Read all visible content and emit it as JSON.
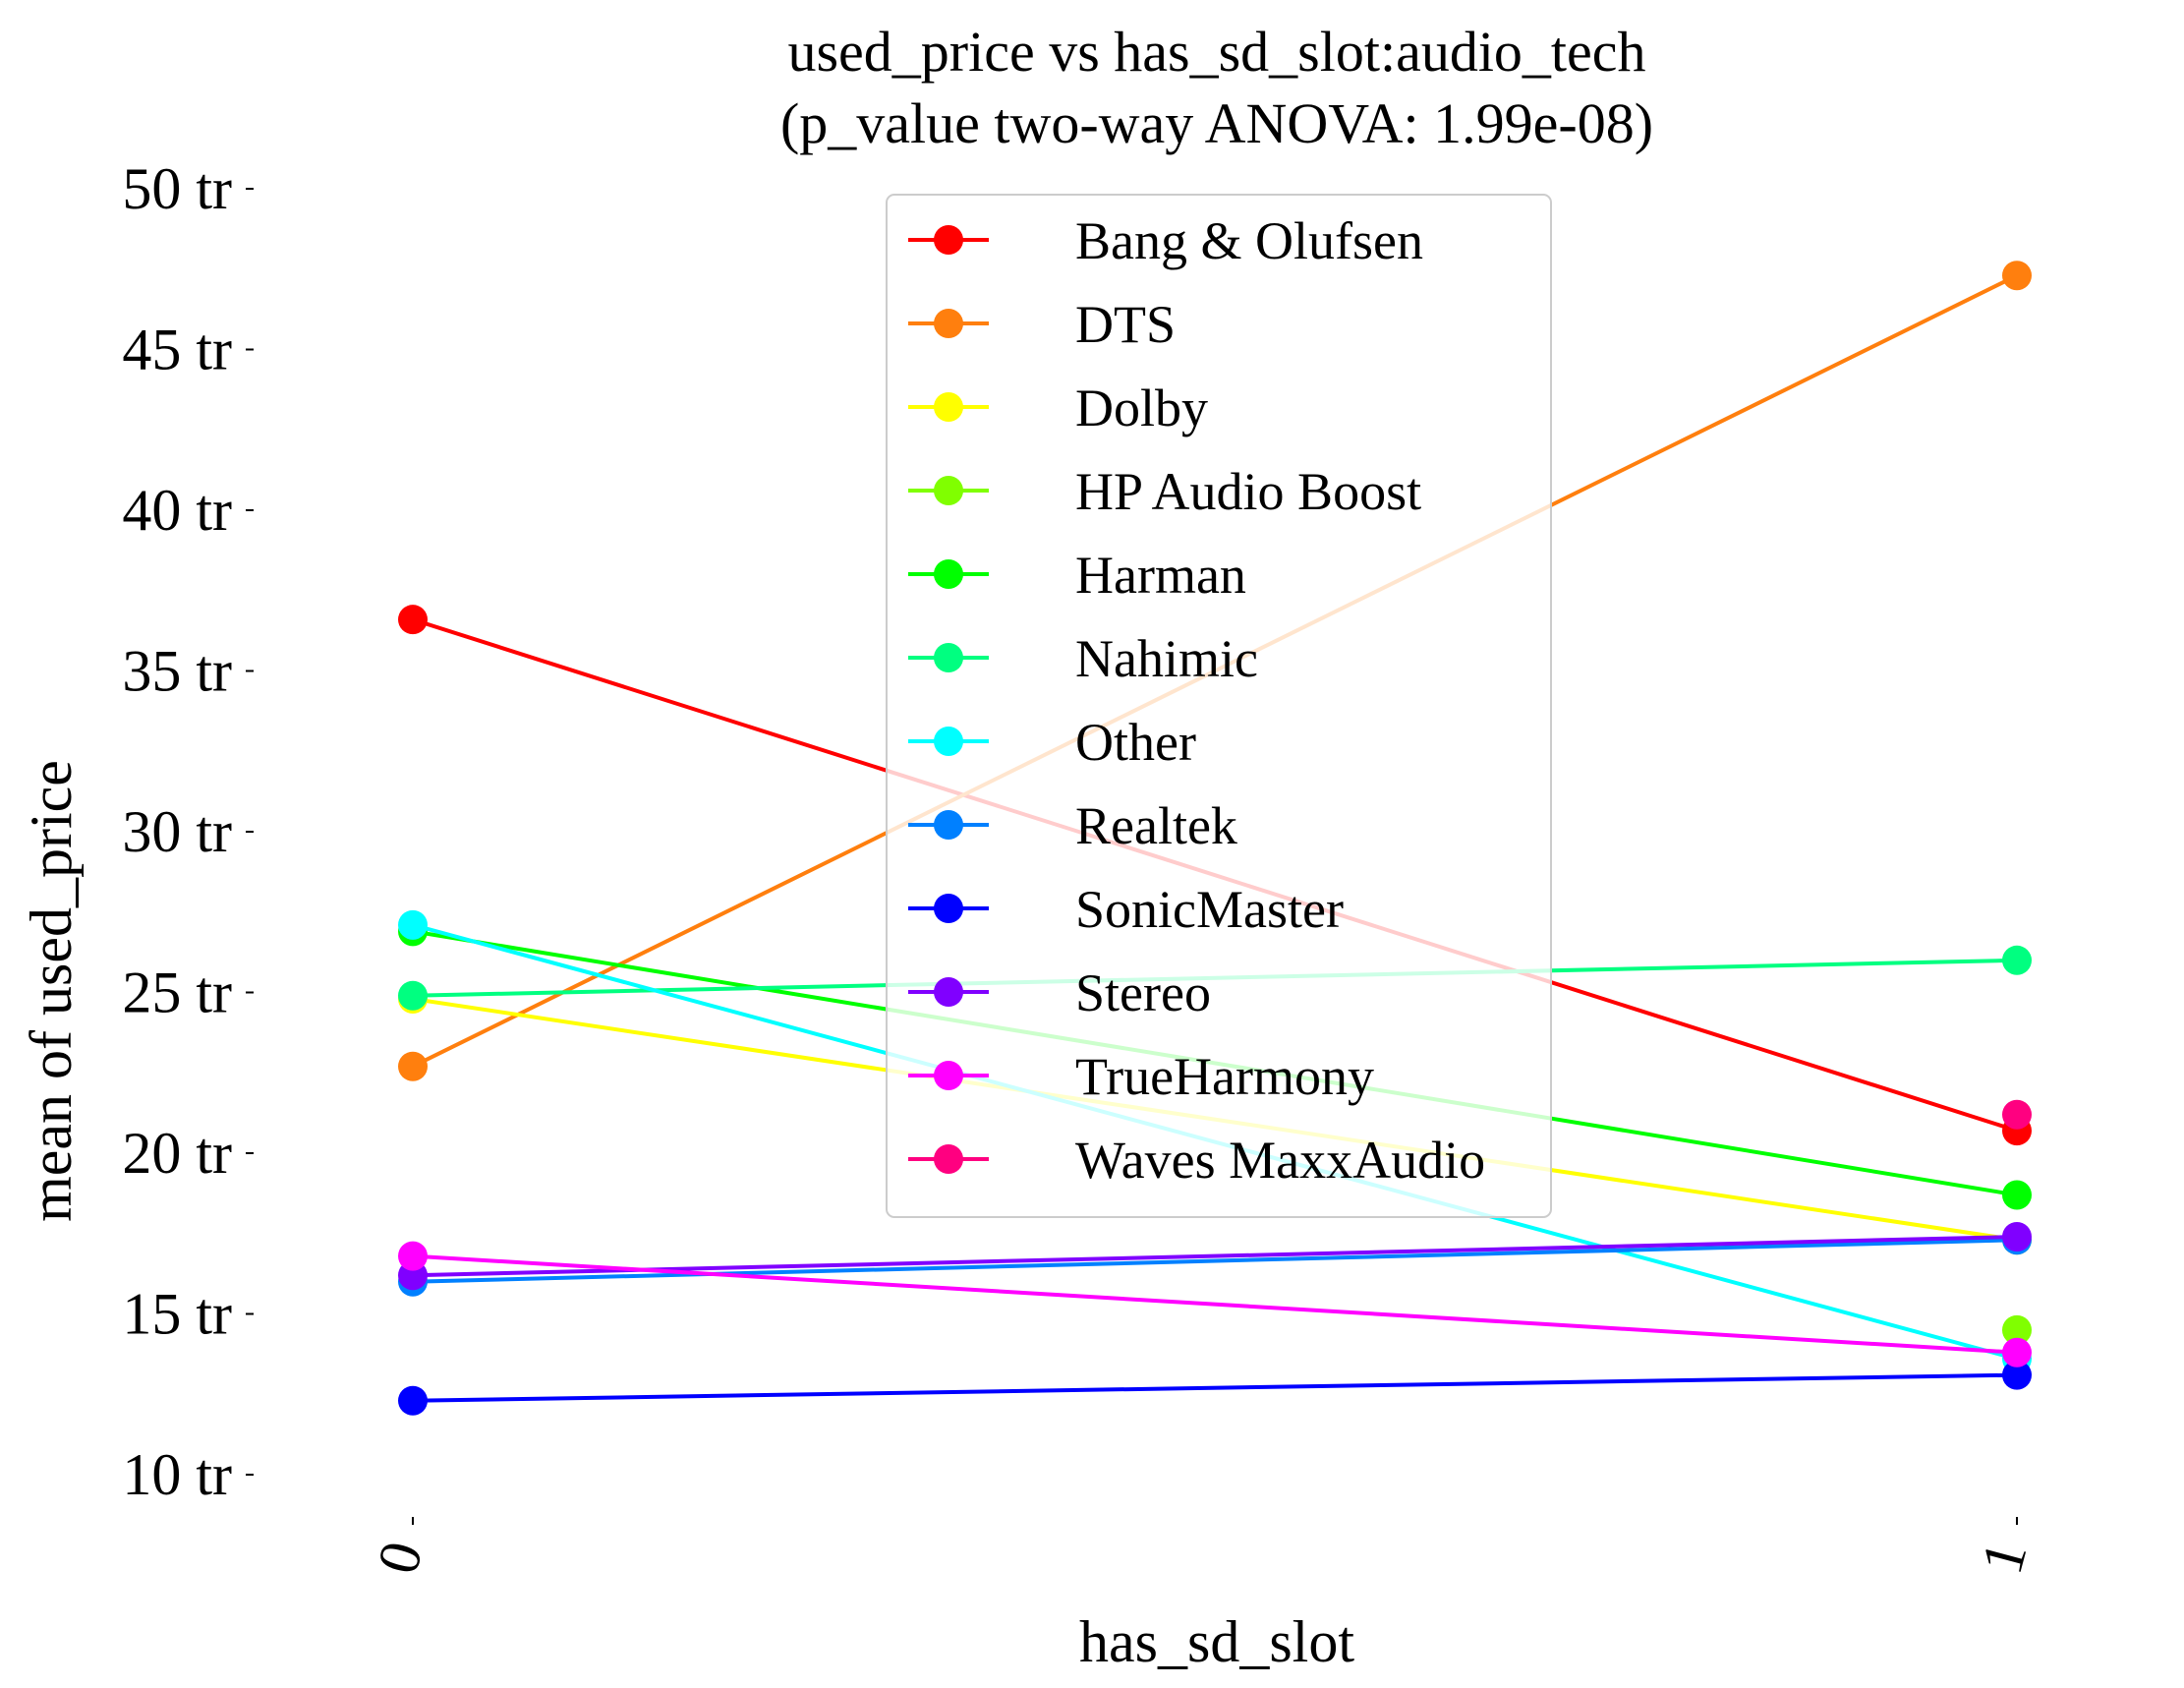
{
  "chart_data": {
    "type": "line",
    "title": "used_price vs has_sd_slot:audio_tech",
    "subtitle": "(p_value two-way ANOVA: 1.99e-08)",
    "xlabel": "has_sd_slot",
    "ylabel": "mean of used_price",
    "x": [
      "0",
      "1"
    ],
    "x_tick_labels": [
      "0",
      "1"
    ],
    "ylim": [
      10,
      50
    ],
    "y_ticks": [
      10,
      15,
      20,
      25,
      30,
      35,
      40,
      45,
      50
    ],
    "y_tick_labels": [
      "10 tr",
      "15 tr",
      "20 tr",
      "25 tr",
      "30 tr",
      "35 tr",
      "40 tr",
      "45 tr",
      "50 tr"
    ],
    "grid": false,
    "legend_position": "top-center",
    "series": [
      {
        "name": "Bang & Olufsen",
        "color": "#ff0000",
        "values": [
          36.6,
          20.7
        ]
      },
      {
        "name": "DTS",
        "color": "#ff7f0e",
        "values": [
          22.7,
          47.3
        ]
      },
      {
        "name": "Dolby",
        "color": "#ffff00",
        "values": [
          24.8,
          17.3
        ]
      },
      {
        "name": "HP Audio Boost",
        "color": "#80ff00",
        "values": [
          null,
          14.5
        ]
      },
      {
        "name": "Harman",
        "color": "#00ff00",
        "values": [
          26.9,
          18.7
        ]
      },
      {
        "name": "Nahimic",
        "color": "#00ff80",
        "values": [
          24.9,
          26.0
        ]
      },
      {
        "name": "Other",
        "color": "#00ffff",
        "values": [
          27.1,
          13.6
        ]
      },
      {
        "name": "Realtek",
        "color": "#0080ff",
        "values": [
          16.0,
          17.3
        ]
      },
      {
        "name": "SonicMaster",
        "color": "#0000ff",
        "values": [
          12.3,
          13.1
        ]
      },
      {
        "name": "Stereo",
        "color": "#8000ff",
        "values": [
          16.2,
          17.4
        ]
      },
      {
        "name": "TrueHarmony",
        "color": "#ff00ff",
        "values": [
          16.8,
          13.8
        ]
      },
      {
        "name": "Waves MaxxAudio",
        "color": "#ff0080",
        "values": [
          null,
          21.2
        ]
      }
    ]
  }
}
